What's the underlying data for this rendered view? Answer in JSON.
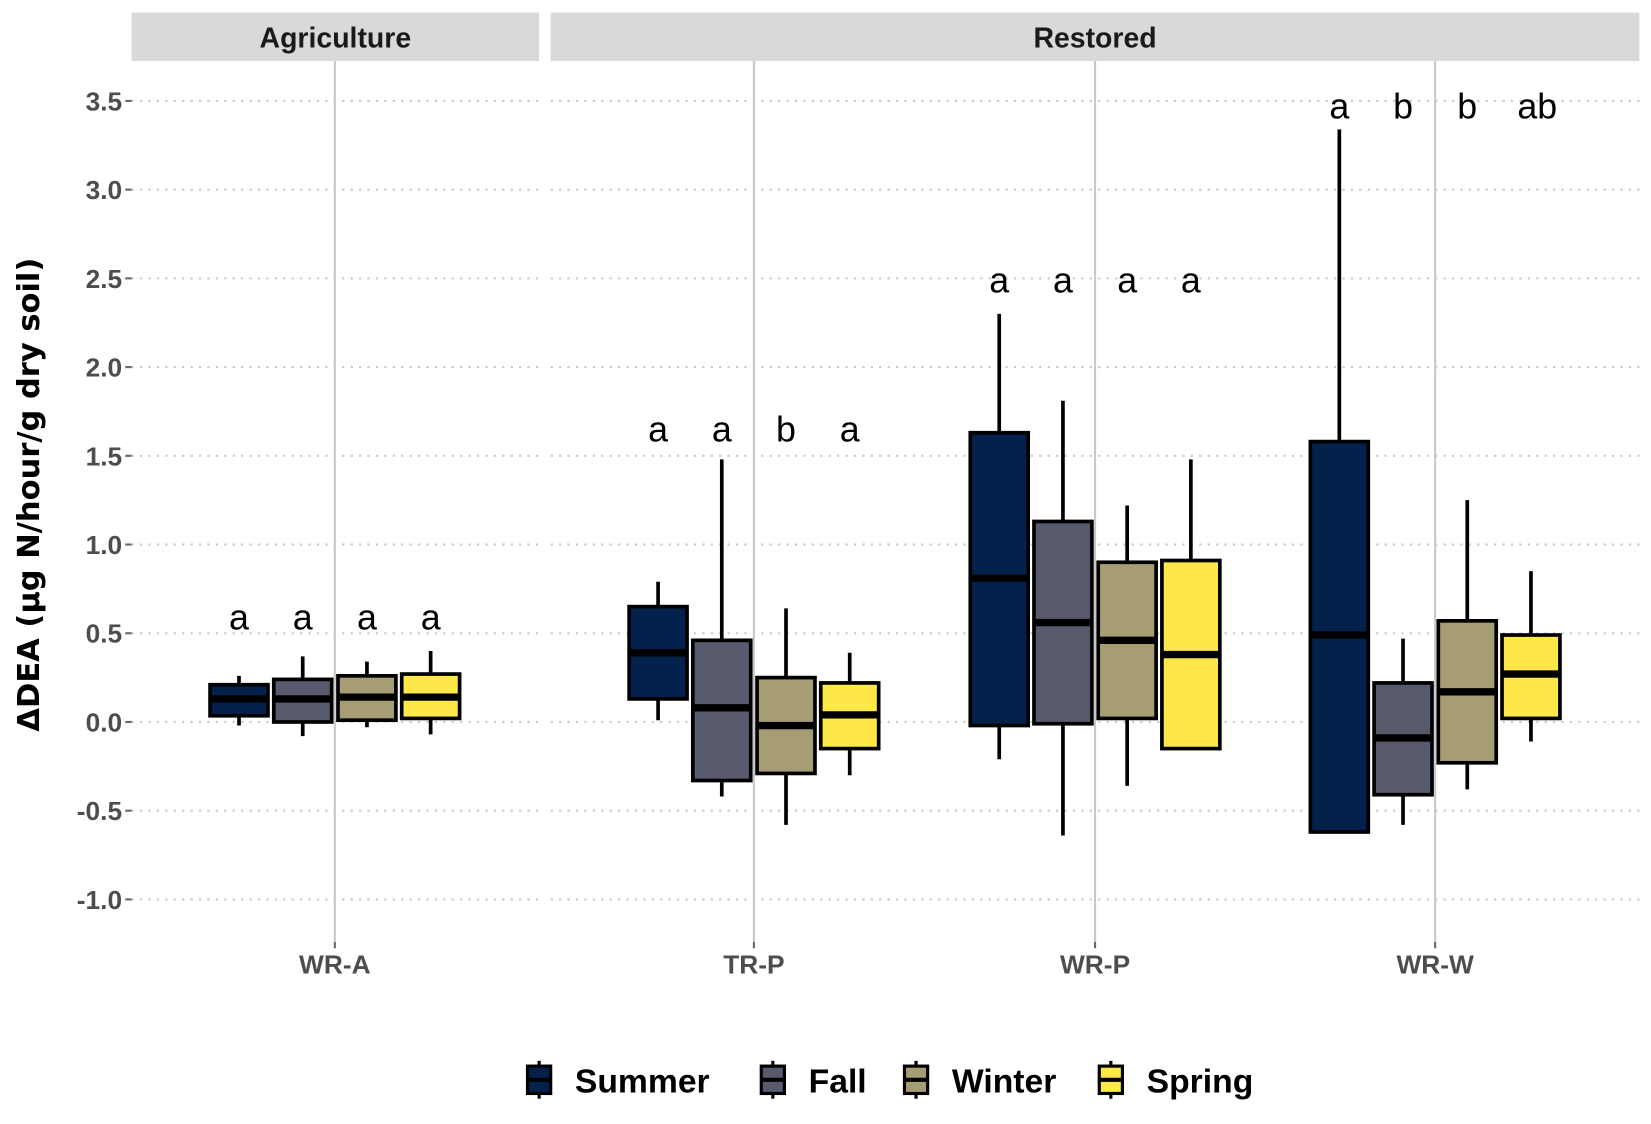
{
  "chart_data": {
    "type": "boxplot",
    "title": "",
    "xlabel": "",
    "ylabel": "ΔDEA (μg N/hour/g dry soil)",
    "ylim": [
      -1.2,
      3.6
    ],
    "yticks": [
      -1.0,
      -0.5,
      0.0,
      0.5,
      1.0,
      1.5,
      2.0,
      2.5,
      3.0,
      3.5
    ],
    "ytick_labels": [
      "-1.0",
      "-0.5",
      "0.0",
      "0.5",
      "1.0",
      "1.5",
      "2.0",
      "2.5",
      "3.0",
      "3.5"
    ],
    "grid": "horizontal dotted major gridlines",
    "legend_position": "bottom",
    "series": [
      {
        "name": "Summer",
        "color": "#03214a"
      },
      {
        "name": "Fall",
        "color": "#575a6c"
      },
      {
        "name": "Winter",
        "color": "#a69d75"
      },
      {
        "name": "Spring",
        "color": "#fee849"
      }
    ],
    "panels": [
      {
        "label": "Agriculture",
        "categories": [
          {
            "label": "WR-A",
            "letter_y": 0.58,
            "boxes": [
              {
                "season": "Summer",
                "min": -0.02,
                "q1": 0.035,
                "median": 0.13,
                "q3": 0.21,
                "max": 0.26,
                "letter": "a"
              },
              {
                "season": "Fall",
                "min": -0.08,
                "q1": 0.0,
                "median": 0.13,
                "q3": 0.24,
                "max": 0.37,
                "letter": "a"
              },
              {
                "season": "Winter",
                "min": -0.03,
                "q1": 0.01,
                "median": 0.14,
                "q3": 0.26,
                "max": 0.34,
                "letter": "a"
              },
              {
                "season": "Spring",
                "min": -0.07,
                "q1": 0.02,
                "median": 0.14,
                "q3": 0.27,
                "max": 0.4,
                "letter": "a"
              }
            ]
          }
        ]
      },
      {
        "label": "Restored",
        "categories": [
          {
            "label": "TR-P",
            "letter_y": 1.64,
            "boxes": [
              {
                "season": "Summer",
                "min": 0.01,
                "q1": 0.13,
                "median": 0.39,
                "q3": 0.65,
                "max": 0.79,
                "letter": "a"
              },
              {
                "season": "Fall",
                "min": -0.42,
                "q1": -0.33,
                "median": 0.08,
                "q3": 0.46,
                "max": 1.48,
                "letter": "a"
              },
              {
                "season": "Winter",
                "min": -0.58,
                "q1": -0.29,
                "median": -0.02,
                "q3": 0.25,
                "max": 0.64,
                "letter": "b"
              },
              {
                "season": "Spring",
                "min": -0.3,
                "q1": -0.15,
                "median": 0.04,
                "q3": 0.22,
                "max": 0.39,
                "letter": "a"
              }
            ]
          },
          {
            "label": "WR-P",
            "letter_y": 2.48,
            "boxes": [
              {
                "season": "Summer",
                "min": -0.21,
                "q1": -0.02,
                "median": 0.81,
                "q3": 1.63,
                "max": 2.3,
                "letter": "a"
              },
              {
                "season": "Fall",
                "min": -0.64,
                "q1": -0.01,
                "median": 0.56,
                "q3": 1.13,
                "max": 1.81,
                "letter": "a"
              },
              {
                "season": "Winter",
                "min": -0.36,
                "q1": 0.02,
                "median": 0.46,
                "q3": 0.9,
                "max": 1.22,
                "letter": "a"
              },
              {
                "season": "Spring",
                "min": -0.15,
                "q1": -0.15,
                "median": 0.38,
                "q3": 0.91,
                "max": 1.48,
                "letter": "a"
              }
            ]
          },
          {
            "label": "WR-W",
            "letter_y": 3.46,
            "boxes": [
              {
                "season": "Summer",
                "min": -0.62,
                "q1": -0.62,
                "median": 0.49,
                "q3": 1.58,
                "max": 3.34,
                "letter": "a"
              },
              {
                "season": "Fall",
                "min": -0.58,
                "q1": -0.41,
                "median": -0.09,
                "q3": 0.22,
                "max": 0.47,
                "letter": "b"
              },
              {
                "season": "Winter",
                "min": -0.38,
                "q1": -0.23,
                "median": 0.17,
                "q3": 0.57,
                "max": 1.25,
                "letter": "b"
              },
              {
                "season": "Spring",
                "min": -0.11,
                "q1": 0.02,
                "median": 0.27,
                "q3": 0.49,
                "max": 0.85,
                "letter": "ab"
              }
            ]
          }
        ]
      }
    ]
  }
}
